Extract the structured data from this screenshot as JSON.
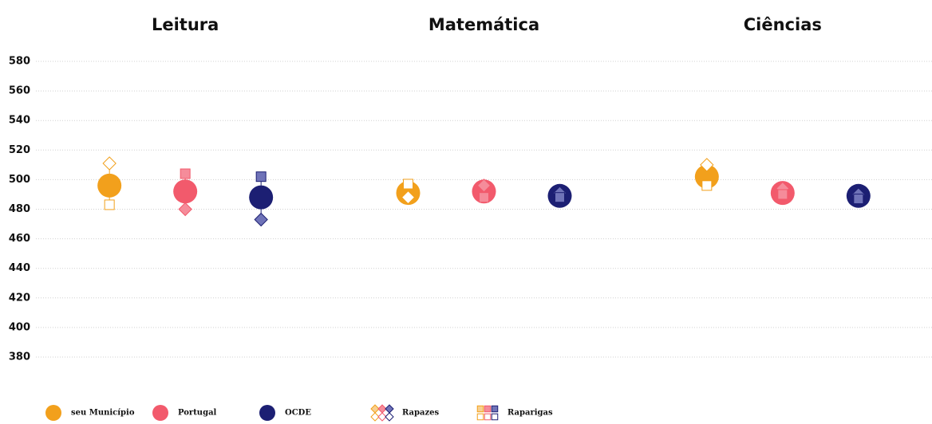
{
  "chart_data": {
    "type": "dot",
    "categories": [
      "Leitura",
      "Matemática",
      "Ciências"
    ],
    "ylim": [
      380,
      580
    ],
    "yticks": [
      380,
      400,
      420,
      440,
      460,
      480,
      500,
      520,
      540,
      560,
      580
    ],
    "grid": true,
    "series": [
      {
        "name": "seu Município",
        "color": "#F2A01C",
        "marker_color": "#ffffff",
        "values": [
          496,
          491,
          502
        ]
      },
      {
        "name": "Portugal",
        "color": "#F25A6C",
        "marker_color": "#F58C9A",
        "values": [
          492,
          492,
          491
        ]
      },
      {
        "name": "OCDE",
        "color": "#1C1F73",
        "marker_color": "#6F73B8",
        "values": [
          488,
          489,
          489
        ]
      }
    ],
    "subgroups": [
      {
        "name": "Rapazes",
        "shape": "diamond",
        "values": [
          [
            511,
            488,
            510
          ],
          [
            480,
            496,
            494
          ],
          [
            473,
            491,
            490
          ]
        ]
      },
      {
        "name": "Raparigas",
        "shape": "square",
        "values": [
          [
            483,
            497,
            496
          ],
          [
            504,
            488,
            490
          ],
          [
            502,
            488,
            487
          ]
        ]
      }
    ]
  }
}
